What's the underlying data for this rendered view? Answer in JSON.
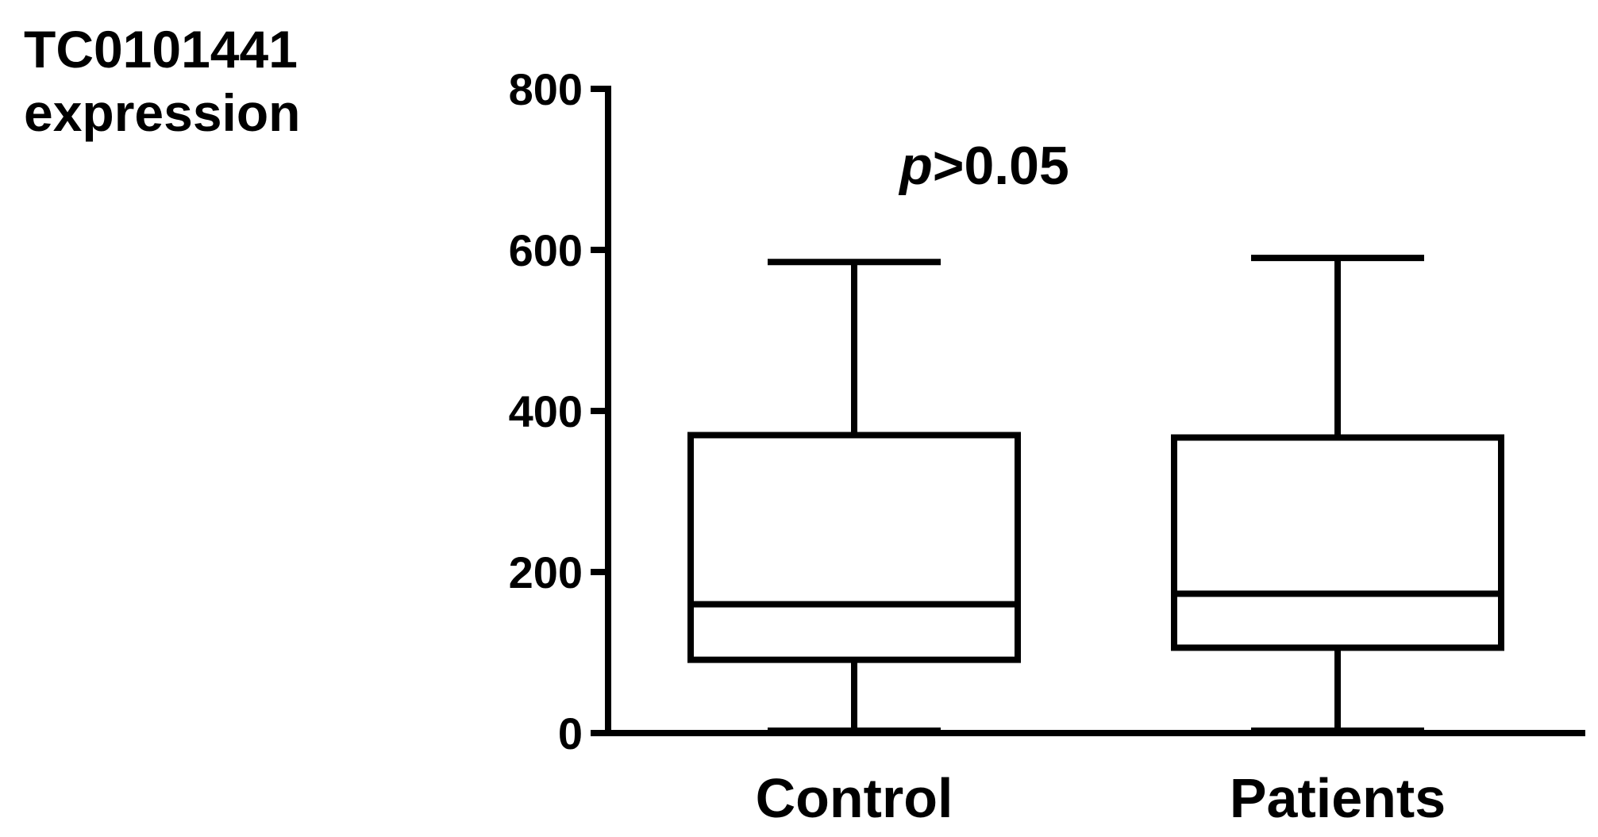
{
  "chart_data": {
    "type": "box",
    "y_label": "TC0101441 expression",
    "annotation": "p>0.05",
    "categories": [
      "Control",
      "Patients"
    ],
    "boxes": [
      {
        "min": 3,
        "q1": 91,
        "median": 160,
        "q3": 370,
        "max": 585
      },
      {
        "min": 3,
        "q1": 106,
        "median": 173,
        "q3": 367,
        "max": 590
      }
    ],
    "color": "#000000",
    "ylim": [
      0,
      800
    ],
    "yticks": [
      0,
      200,
      400,
      600,
      800
    ]
  }
}
